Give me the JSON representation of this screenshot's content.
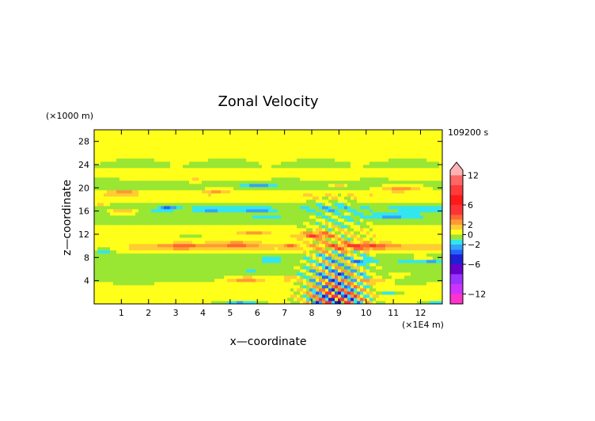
{
  "chart_data": {
    "type": "heatmap",
    "title": "Zonal Velocity",
    "xlabel": "x—coordinate",
    "ylabel": "z—coordinate",
    "x_unit_label": "(×1E4 m)",
    "y_unit_label": "(×1000 m)",
    "time_label": "109200 s",
    "xlim": [
      0,
      12.8
    ],
    "ylim": [
      0,
      30
    ],
    "x_ticks": [
      {
        "value": 1,
        "label": "1"
      },
      {
        "value": 2,
        "label": "2"
      },
      {
        "value": 3,
        "label": "3"
      },
      {
        "value": 4,
        "label": "4"
      },
      {
        "value": 5,
        "label": "5"
      },
      {
        "value": 6,
        "label": "6"
      },
      {
        "value": 7,
        "label": "7"
      },
      {
        "value": 8,
        "label": "8"
      },
      {
        "value": 9,
        "label": "9"
      },
      {
        "value": 10,
        "label": "10"
      },
      {
        "value": 11,
        "label": "11"
      },
      {
        "value": 12,
        "label": "12"
      }
    ],
    "y_ticks": [
      {
        "value": 4,
        "label": "4"
      },
      {
        "value": 8,
        "label": "8"
      },
      {
        "value": 12,
        "label": "12"
      },
      {
        "value": 16,
        "label": "16"
      },
      {
        "value": 20,
        "label": "20"
      },
      {
        "value": 24,
        "label": "24"
      },
      {
        "value": 28,
        "label": "28"
      }
    ],
    "colorbar": {
      "range": [
        -14,
        14
      ],
      "tick_labels": [
        {
          "value": 12,
          "label": "12"
        },
        {
          "value": 6,
          "label": "6"
        },
        {
          "value": 2,
          "label": "2"
        },
        {
          "value": 0,
          "label": "0"
        },
        {
          "value": -2,
          "label": "−2"
        },
        {
          "value": -6,
          "label": "−6"
        },
        {
          "value": -12,
          "label": "−12"
        }
      ],
      "levels": [
        {
          "from": -14,
          "to": -12,
          "color": "#ff33cc"
        },
        {
          "from": -12,
          "to": -10,
          "color": "#cc33ff"
        },
        {
          "from": -10,
          "to": -8,
          "color": "#9933ff"
        },
        {
          "from": -8,
          "to": -6,
          "color": "#6600cc"
        },
        {
          "from": -6,
          "to": -4,
          "color": "#1f1fd6"
        },
        {
          "from": -4,
          "to": -3,
          "color": "#1f66ff"
        },
        {
          "from": -3,
          "to": -2,
          "color": "#33a3ff"
        },
        {
          "from": -2,
          "to": -1,
          "color": "#33e6ee"
        },
        {
          "from": -1,
          "to": 0,
          "color": "#99e633"
        },
        {
          "from": 0,
          "to": 1,
          "color": "#ffff1a"
        },
        {
          "from": 1,
          "to": 2,
          "color": "#ffcc33"
        },
        {
          "from": 2,
          "to": 3,
          "color": "#ff9933"
        },
        {
          "from": 3,
          "to": 4,
          "color": "#ff6633"
        },
        {
          "from": 4,
          "to": 6,
          "color": "#ff3333"
        },
        {
          "from": 6,
          "to": 8,
          "color": "#ff1a1a"
        },
        {
          "from": 8,
          "to": 10,
          "color": "#ff3b3b"
        },
        {
          "from": 10,
          "to": 12,
          "color": "#ff6666"
        },
        {
          "from": 12,
          "to": 14,
          "color": "#ffb3b3"
        }
      ]
    },
    "field_features": [
      {
        "kind": "band",
        "x": [
          0,
          12.8
        ],
        "z": 26.5,
        "thick": 2.5,
        "value": 0.6
      },
      {
        "kind": "band",
        "x": [
          0,
          12.8
        ],
        "z": 24.2,
        "thick": 1.6,
        "value": -0.4
      },
      {
        "kind": "band",
        "x": [
          0,
          12.8
        ],
        "z": 22.5,
        "thick": 0.9,
        "value": 0.5
      },
      {
        "kind": "band",
        "x": [
          0,
          12.8
        ],
        "z": 20.4,
        "thick": 0.9,
        "value": -0.6
      },
      {
        "kind": "band",
        "x": [
          0,
          12.8
        ],
        "z": 18.8,
        "thick": 1.0,
        "value": 0.8
      },
      {
        "kind": "band",
        "x": [
          0,
          12.8
        ],
        "z": 16.5,
        "thick": 0.8,
        "value": -1.2
      },
      {
        "kind": "band",
        "x": [
          0,
          12.8
        ],
        "z": 14.8,
        "thick": 0.9,
        "value": -0.5
      },
      {
        "kind": "band",
        "x": [
          0,
          12.8
        ],
        "z": 12.0,
        "thick": 1.0,
        "value": 0.7
      },
      {
        "kind": "band",
        "x": [
          0,
          12.8
        ],
        "z": 9.8,
        "thick": 0.9,
        "value": 1.2
      },
      {
        "kind": "band",
        "x": [
          0,
          12.8
        ],
        "z": 7.8,
        "thick": 0.9,
        "value": -0.6
      },
      {
        "kind": "band",
        "x": [
          0,
          12.8
        ],
        "z": 5.0,
        "thick": 1.3,
        "value": -0.5
      },
      {
        "kind": "band",
        "x": [
          0,
          12.8
        ],
        "z": 2.0,
        "thick": 1.4,
        "value": 0.5
      },
      {
        "kind": "blob",
        "x": 1.1,
        "z": 19.2,
        "rx": 0.5,
        "rz": 0.35,
        "value": 2.5
      },
      {
        "kind": "blob",
        "x": 3.7,
        "z": 21.3,
        "rx": 0.3,
        "rz": 0.3,
        "value": 2.2
      },
      {
        "kind": "blob",
        "x": 0.2,
        "z": 17.0,
        "rx": 0.3,
        "rz": 0.3,
        "value": 2.2
      },
      {
        "kind": "blob",
        "x": 1.1,
        "z": 16.0,
        "rx": 0.6,
        "rz": 0.45,
        "value": 2.6
      },
      {
        "kind": "blob",
        "x": 2.0,
        "z": 16.8,
        "rx": 0.4,
        "rz": 0.3,
        "value": 1.8
      },
      {
        "kind": "blob",
        "x": 4.5,
        "z": 19.5,
        "rx": 0.5,
        "rz": 0.35,
        "value": 1.8
      },
      {
        "kind": "blob",
        "x": 9.0,
        "z": 20.5,
        "rx": 0.3,
        "rz": 0.25,
        "value": 2.2
      },
      {
        "kind": "blob",
        "x": 11.3,
        "z": 20.0,
        "rx": 0.8,
        "rz": 0.5,
        "value": 2.6
      },
      {
        "kind": "blob",
        "x": 5.9,
        "z": 12.2,
        "rx": 0.5,
        "rz": 0.35,
        "value": 2.2
      },
      {
        "kind": "blob",
        "x": 3.4,
        "z": 10.0,
        "rx": 0.9,
        "rz": 0.5,
        "value": 2.5
      },
      {
        "kind": "blob",
        "x": 5.2,
        "z": 10.3,
        "rx": 0.8,
        "rz": 0.45,
        "value": 2.4
      },
      {
        "kind": "blob",
        "x": 7.2,
        "z": 10.0,
        "rx": 0.3,
        "rz": 0.4,
        "value": 2.4
      },
      {
        "kind": "blob",
        "x": 8.2,
        "z": 11.8,
        "rx": 0.5,
        "rz": 0.6,
        "value": 3.2
      },
      {
        "kind": "blob",
        "x": 10.0,
        "z": 10.0,
        "rx": 1.2,
        "rz": 0.55,
        "value": 3.3
      },
      {
        "kind": "blob",
        "x": 12.0,
        "z": 8.0,
        "rx": 0.4,
        "rz": 0.3,
        "value": 2.0
      },
      {
        "kind": "blob",
        "x": 5.6,
        "z": 4.2,
        "rx": 0.8,
        "rz": 0.55,
        "value": 2.8
      },
      {
        "kind": "blob",
        "x": 7.2,
        "z": 4.4,
        "rx": 0.4,
        "rz": 0.4,
        "value": 2.8
      },
      {
        "kind": "blob",
        "x": 10.3,
        "z": 4.0,
        "rx": 0.5,
        "rz": 0.4,
        "value": 2.6
      },
      {
        "kind": "blob",
        "x": 11.2,
        "z": 5.0,
        "rx": 0.4,
        "rz": 0.35,
        "value": 2.0
      },
      {
        "kind": "blob",
        "x": 3.6,
        "z": 11.6,
        "rx": 0.4,
        "rz": 0.3,
        "value": -1.8
      },
      {
        "kind": "blob",
        "x": 0.3,
        "z": 9.2,
        "rx": 0.4,
        "rz": 0.4,
        "value": -2.4
      },
      {
        "kind": "blob",
        "x": 2.7,
        "z": 16.6,
        "rx": 0.3,
        "rz": 0.25,
        "value": -2.0
      },
      {
        "kind": "blob",
        "x": 4.3,
        "z": 16.3,
        "rx": 0.5,
        "rz": 0.3,
        "value": -2.2
      },
      {
        "kind": "blob",
        "x": 6.0,
        "z": 16.0,
        "rx": 0.5,
        "rz": 0.3,
        "value": -2.0
      },
      {
        "kind": "blob",
        "x": 6.0,
        "z": 20.4,
        "rx": 0.5,
        "rz": 0.35,
        "value": -2.4
      },
      {
        "kind": "blob",
        "x": 6.4,
        "z": 14.8,
        "rx": 0.7,
        "rz": 0.3,
        "value": -1.2
      },
      {
        "kind": "blob",
        "x": 11.0,
        "z": 15.2,
        "rx": 1.0,
        "rz": 0.4,
        "value": -2.2
      },
      {
        "kind": "blob",
        "x": 6.5,
        "z": 7.6,
        "rx": 0.4,
        "rz": 0.3,
        "value": -2.0
      },
      {
        "kind": "blob",
        "x": 5.8,
        "z": 5.5,
        "rx": 0.3,
        "rz": 0.3,
        "value": -1.6
      },
      {
        "kind": "blob",
        "x": 11.6,
        "z": 7.6,
        "rx": 0.5,
        "rz": 0.3,
        "value": -2.4
      },
      {
        "kind": "blob",
        "x": 12.4,
        "z": 7.2,
        "rx": 0.4,
        "rz": 0.3,
        "value": -2.2
      },
      {
        "kind": "blob",
        "x": 9.9,
        "z": 7.4,
        "rx": 0.3,
        "rz": 0.3,
        "value": -2.2
      },
      {
        "kind": "blob",
        "x": 10.9,
        "z": 2.0,
        "rx": 0.4,
        "rz": 0.3,
        "value": -2.0
      },
      {
        "kind": "blob",
        "x": 5.4,
        "z": 0.3,
        "rx": 0.6,
        "rz": 0.3,
        "value": -2.2
      },
      {
        "kind": "blob",
        "x": 12.6,
        "z": 0.4,
        "rx": 0.4,
        "rz": 0.3,
        "value": -2.0
      },
      {
        "kind": "wave",
        "x": [
          7.5,
          10.3
        ],
        "z": [
          0,
          19
        ],
        "value": 6.5,
        "wavelength": 1.7
      }
    ]
  }
}
